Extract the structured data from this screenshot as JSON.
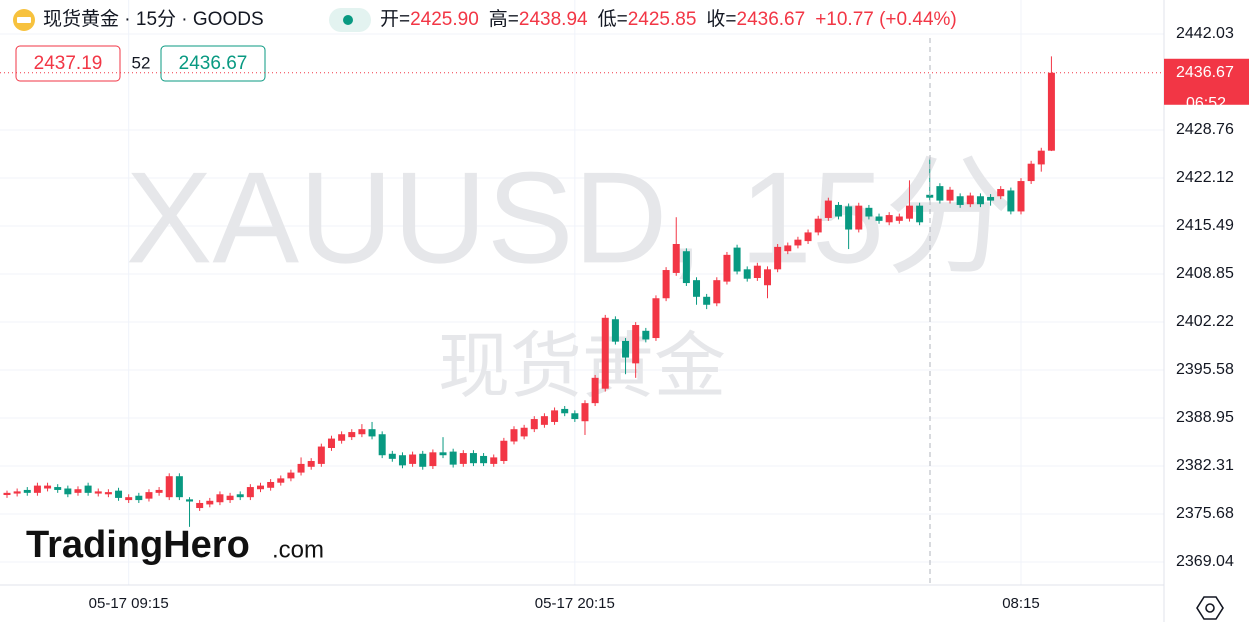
{
  "header": {
    "symbol": "现货黄金 · 15分 · GOODS",
    "ohlc": [
      {
        "label": "开=",
        "value": "2425.90"
      },
      {
        "label": "高=",
        "value": "2438.94"
      },
      {
        "label": "低=",
        "value": "2425.85"
      },
      {
        "label": "收=",
        "value": "2436.67"
      }
    ],
    "change": "+10.77 (+0.44%)"
  },
  "quote": {
    "sell": "2437.19",
    "spread": "52",
    "buy": "2436.67"
  },
  "price_label": {
    "price": "2436.67",
    "countdown": "06:52"
  },
  "watermark": {
    "symbol": "XAUUSD, 15分",
    "name": "现货黄金"
  },
  "logo": {
    "brand": "TradingHero",
    "suffix": ".com"
  },
  "chart_data": {
    "type": "candlestick",
    "up_color": "#f23645",
    "down_color": "#089981",
    "grid": true,
    "categories": [
      null,
      null,
      null,
      null,
      null,
      null,
      null,
      null,
      null,
      null,
      null,
      null,
      "05-17 09:15",
      null,
      null,
      null,
      null,
      null,
      null,
      null,
      null,
      null,
      null,
      null,
      null,
      null,
      null,
      null,
      null,
      null,
      null,
      null,
      null,
      null,
      null,
      null,
      null,
      null,
      null,
      null,
      null,
      null,
      null,
      null,
      null,
      null,
      null,
      null,
      null,
      null,
      null,
      null,
      null,
      null,
      null,
      null,
      "05-17 20:15",
      null,
      null,
      null,
      null,
      null,
      null,
      null,
      null,
      null,
      null,
      null,
      null,
      null,
      null,
      null,
      null,
      null,
      null,
      null,
      null,
      null,
      null,
      null,
      null,
      null,
      null,
      null,
      null,
      null,
      null,
      null,
      null,
      null,
      null,
      null,
      null,
      null,
      null,
      null,
      null,
      null,
      null,
      null,
      "08:15",
      null,
      null,
      null
    ],
    "ylim": [
      2365.86,
      2446.73
    ],
    "yticks": [
      2442.03,
      2428.76,
      2422.12,
      2415.49,
      2408.85,
      2402.22,
      2395.58,
      2388.95,
      2382.31,
      2375.68,
      2369.04
    ],
    "series": [
      {
        "open": [
          2378.3,
          2378.5,
          2379.0,
          2378.6,
          2379.2,
          2379.4,
          2379.2,
          2378.6,
          2379.6,
          2378.5,
          2378.4,
          2378.9,
          2377.6,
          2378.2,
          2377.8,
          2378.6,
          2378.0,
          2380.9,
          2377.7,
          2376.5,
          2377.0,
          2377.3,
          2377.6,
          2378.4,
          2378.0,
          2379.1,
          2379.3,
          2380.0,
          2380.6,
          2381.4,
          2382.2,
          2382.6,
          2384.8,
          2385.8,
          2386.3,
          2386.7,
          2387.4,
          2386.7,
          2384.0,
          2383.8,
          2382.6,
          2384.0,
          2382.3,
          2384.2,
          2384.3,
          2382.6,
          2384.1,
          2383.7,
          2382.6,
          2383.0,
          2385.7,
          2386.4,
          2387.4,
          2388.0,
          2388.4,
          2390.2,
          2389.6,
          2388.5,
          2391.0,
          2393.0,
          2402.6,
          2399.6,
          2396.5,
          2401.0,
          2400.0,
          2405.5,
          2409.0,
          2412.0,
          2408.0,
          2405.7,
          2404.8,
          2407.8,
          2412.5,
          2409.5,
          2408.3,
          2407.3,
          2409.5,
          2412.0,
          2412.8,
          2413.4,
          2414.6,
          2416.6,
          2418.4,
          2418.2,
          2415.0,
          2418.0,
          2416.8,
          2416.0,
          2416.2,
          2416.5,
          2418.3,
          2419.8,
          2421.0,
          2419.0,
          2419.6,
          2418.5,
          2419.6,
          2419.5,
          2419.6,
          2420.4,
          2417.5,
          2421.7,
          2424.0,
          2425.9
        ],
        "high": [
          2378.9,
          2379.2,
          2379.4,
          2380.0,
          2380.0,
          2379.8,
          2379.6,
          2379.5,
          2380.0,
          2379.2,
          2379.1,
          2379.3,
          2378.4,
          2378.6,
          2379.1,
          2379.4,
          2381.3,
          2381.3,
          2378.0,
          2377.6,
          2377.9,
          2378.8,
          2378.6,
          2378.8,
          2379.8,
          2380.0,
          2380.5,
          2381.0,
          2381.8,
          2383.5,
          2383.4,
          2385.4,
          2386.5,
          2387.1,
          2387.4,
          2388.1,
          2388.4,
          2387.1,
          2384.4,
          2384.2,
          2384.3,
          2384.4,
          2384.6,
          2386.3,
          2384.7,
          2384.5,
          2384.5,
          2384.1,
          2383.9,
          2386.2,
          2387.8,
          2388.0,
          2389.2,
          2389.6,
          2390.4,
          2390.6,
          2390.0,
          2391.4,
          2394.9,
          2403.2,
          2403.0,
          2400.0,
          2402.2,
          2401.4,
          2405.9,
          2409.8,
          2416.7,
          2412.4,
          2408.4,
          2406.1,
          2408.4,
          2411.9,
          2412.9,
          2409.9,
          2410.4,
          2409.9,
          2413.0,
          2413.2,
          2414.0,
          2415.0,
          2416.9,
          2419.4,
          2418.8,
          2418.6,
          2418.7,
          2418.4,
          2417.2,
          2417.4,
          2417.2,
          2421.8,
          2418.7,
          2424.8,
          2421.4,
          2420.9,
          2420.0,
          2420.1,
          2420.0,
          2419.9,
          2421.0,
          2420.8,
          2422.1,
          2424.5,
          2426.3,
          2438.94
        ],
        "low": [
          2377.9,
          2378.1,
          2378.2,
          2378.2,
          2378.8,
          2378.6,
          2378.0,
          2378.2,
          2378.2,
          2378.1,
          2378.0,
          2377.5,
          2377.2,
          2377.2,
          2377.4,
          2378.2,
          2377.6,
          2377.6,
          2373.9,
          2376.1,
          2376.6,
          2376.9,
          2377.2,
          2377.6,
          2377.6,
          2378.7,
          2378.9,
          2379.6,
          2380.2,
          2381.0,
          2381.8,
          2382.2,
          2384.4,
          2385.4,
          2385.9,
          2386.3,
          2386.0,
          2383.4,
          2382.9,
          2382.0,
          2382.2,
          2381.8,
          2381.9,
          2383.4,
          2382.1,
          2382.2,
          2382.3,
          2382.3,
          2382.2,
          2382.6,
          2385.3,
          2386.0,
          2387.0,
          2387.6,
          2388.0,
          2389.2,
          2388.4,
          2386.6,
          2390.6,
          2392.6,
          2399.1,
          2395.0,
          2394.5,
          2399.4,
          2399.6,
          2405.1,
          2408.6,
          2407.2,
          2404.6,
          2404.0,
          2404.4,
          2407.4,
          2408.8,
          2407.8,
          2407.9,
          2405.5,
          2409.1,
          2411.6,
          2412.4,
          2413.0,
          2414.2,
          2416.2,
          2416.4,
          2412.3,
          2414.6,
          2416.4,
          2415.8,
          2415.6,
          2415.8,
          2416.1,
          2415.6,
          2419.0,
          2418.6,
          2418.6,
          2418.0,
          2418.1,
          2418.1,
          2418.3,
          2419.2,
          2417.1,
          2417.1,
          2421.3,
          2423.0,
          2425.85
        ],
        "close": [
          2378.6,
          2378.8,
          2378.6,
          2379.6,
          2379.6,
          2379.0,
          2378.4,
          2379.1,
          2378.6,
          2378.8,
          2378.7,
          2377.9,
          2378.0,
          2377.6,
          2378.7,
          2379.0,
          2380.9,
          2378.0,
          2377.4,
          2377.2,
          2377.5,
          2378.4,
          2378.2,
          2378.0,
          2379.4,
          2379.6,
          2380.1,
          2380.6,
          2381.4,
          2382.6,
          2383.0,
          2385.0,
          2386.1,
          2386.7,
          2387.0,
          2387.4,
          2386.4,
          2383.8,
          2383.3,
          2382.4,
          2383.9,
          2382.2,
          2384.2,
          2383.8,
          2382.5,
          2384.1,
          2382.7,
          2382.7,
          2383.5,
          2385.8,
          2387.4,
          2387.6,
          2388.8,
          2389.2,
          2390.0,
          2389.6,
          2388.8,
          2391.0,
          2394.5,
          2402.8,
          2399.5,
          2397.3,
          2401.8,
          2399.8,
          2405.5,
          2409.4,
          2413.0,
          2407.6,
          2405.7,
          2404.6,
          2408.0,
          2411.5,
          2409.2,
          2408.2,
          2410.0,
          2409.5,
          2412.6,
          2412.8,
          2413.6,
          2414.6,
          2416.5,
          2419.0,
          2416.8,
          2415.0,
          2418.3,
          2416.8,
          2416.2,
          2417.0,
          2416.8,
          2418.3,
          2416.0,
          2419.4,
          2419.0,
          2420.5,
          2418.4,
          2419.7,
          2418.5,
          2419.0,
          2420.6,
          2417.5,
          2421.7,
          2424.1,
          2425.9,
          2436.67
        ]
      }
    ]
  }
}
